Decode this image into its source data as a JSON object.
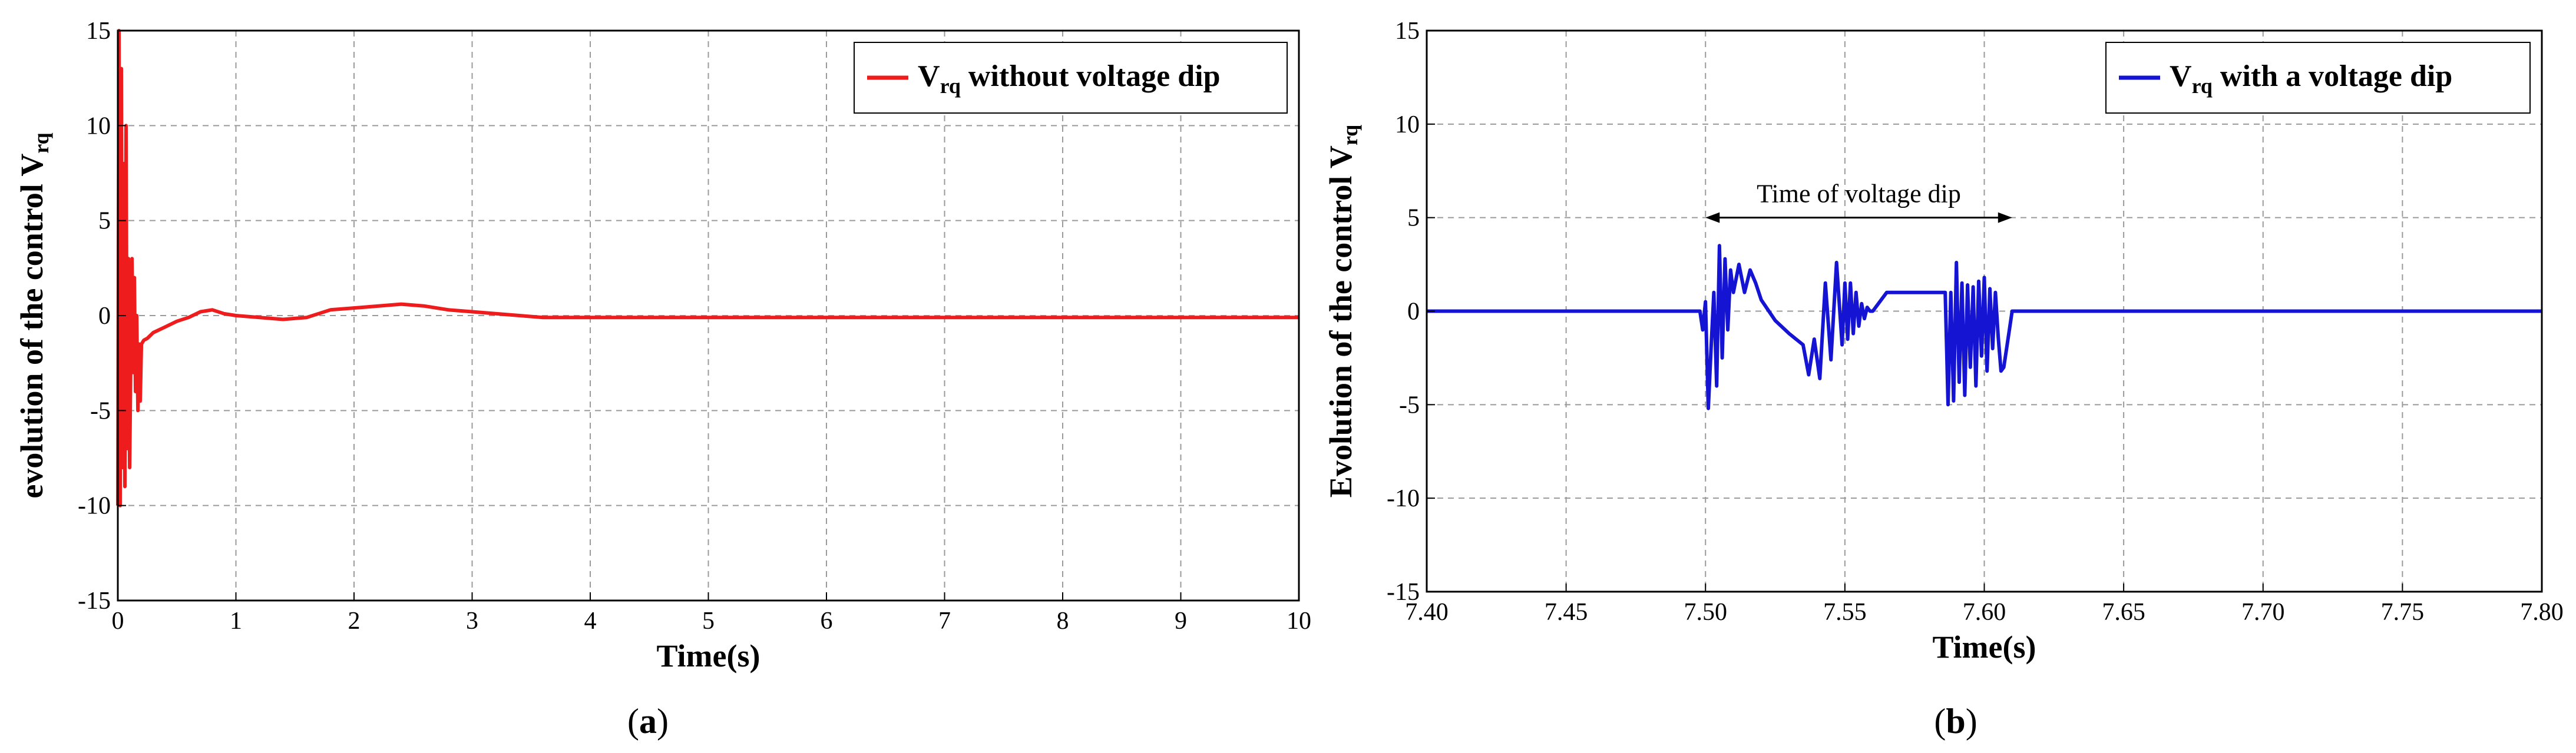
{
  "chart_data": [
    {
      "type": "line",
      "panel_label": "a",
      "xlabel": "Time(s)",
      "ylabel": "evolution of the control V",
      "ylabel_subscript": "rq",
      "xlim": [
        0,
        10
      ],
      "ylim": [
        -15,
        15
      ],
      "xticks": [
        0,
        1,
        2,
        3,
        4,
        5,
        6,
        7,
        8,
        9,
        10
      ],
      "xtick_labels": [
        "0",
        "1",
        "2",
        "3",
        "4",
        "5",
        "6",
        "7",
        "8",
        "9",
        "10"
      ],
      "yticks": [
        -15,
        -10,
        -5,
        0,
        5,
        10,
        15
      ],
      "ytick_labels": [
        "-15",
        "-10",
        "-5",
        "0",
        "5",
        "10",
        "15"
      ],
      "grid": true,
      "legend_position": "top-right",
      "legend_label": "V",
      "legend_subscript": "rq",
      "legend_suffix": " without voltage dip",
      "series": [
        {
          "color": "#ee1c1c",
          "x": [
            0,
            0.01,
            0.02,
            0.03,
            0.04,
            0.05,
            0.06,
            0.07,
            0.08,
            0.09,
            0.1,
            0.11,
            0.12,
            0.13,
            0.14,
            0.15,
            0.16,
            0.17,
            0.18,
            0.19,
            0.2,
            0.22,
            0.25,
            0.3,
            0.4,
            0.5,
            0.6,
            0.7,
            0.8,
            0.9,
            1.0,
            1.2,
            1.4,
            1.6,
            1.8,
            2.0,
            2.2,
            2.4,
            2.6,
            2.8,
            3.0,
            3.2,
            3.4,
            3.6,
            3.8,
            4.0,
            5.0,
            6.0,
            7.0,
            8.0,
            9.0,
            10.0
          ],
          "y": [
            -10,
            15,
            -10,
            13,
            -8,
            8,
            -9,
            10,
            -7,
            3,
            -8,
            -2,
            3,
            -3,
            2,
            -4,
            0,
            -5,
            -1.5,
            -4.5,
            -1.5,
            -1.3,
            -1.2,
            -0.9,
            -0.6,
            -0.3,
            -0.1,
            0.2,
            0.3,
            0.1,
            0.0,
            -0.1,
            -0.2,
            -0.1,
            0.3,
            0.4,
            0.5,
            0.6,
            0.5,
            0.3,
            0.2,
            0.1,
            0.0,
            -0.1,
            -0.1,
            -0.1,
            -0.1,
            -0.1,
            -0.1,
            -0.1,
            -0.1,
            -0.1
          ]
        }
      ]
    },
    {
      "type": "line",
      "panel_label": "b",
      "xlabel": "Time(s)",
      "ylabel": "Evolution of the control V",
      "ylabel_subscript": "rq",
      "xlim": [
        7.4,
        7.8
      ],
      "ylim": [
        -15,
        15
      ],
      "xticks": [
        7.4,
        7.45,
        7.5,
        7.55,
        7.6,
        7.65,
        7.7,
        7.75,
        7.8
      ],
      "xtick_labels": [
        "7.40",
        "7.45",
        "7.50",
        "7.55",
        "7.60",
        "7.65",
        "7.70",
        "7.75",
        "7.80"
      ],
      "yticks": [
        -15,
        -10,
        -5,
        0,
        5,
        10,
        15
      ],
      "ytick_labels": [
        "-15",
        "-10",
        "-5",
        "0",
        "5",
        "10",
        "15"
      ],
      "grid": true,
      "legend_position": "top-right",
      "legend_label": "V",
      "legend_subscript": "rq",
      "legend_suffix": " with a voltage dip",
      "annotation": {
        "text": "Time of voltage dip",
        "x_start": 7.5,
        "x_end": 7.61,
        "y": 5
      },
      "series": [
        {
          "color": "#1414d2",
          "x": [
            7.4,
            7.498,
            7.499,
            7.5,
            7.501,
            7.502,
            7.503,
            7.504,
            7.505,
            7.506,
            7.507,
            7.508,
            7.509,
            7.51,
            7.512,
            7.514,
            7.516,
            7.518,
            7.52,
            7.525,
            7.53,
            7.535,
            7.537,
            7.539,
            7.541,
            7.543,
            7.545,
            7.547,
            7.549,
            7.55,
            7.551,
            7.552,
            7.553,
            7.554,
            7.555,
            7.556,
            7.557,
            7.558,
            7.559,
            7.56,
            7.565,
            7.57,
            7.575,
            7.58,
            7.586,
            7.587,
            7.588,
            7.589,
            7.59,
            7.591,
            7.592,
            7.593,
            7.594,
            7.595,
            7.596,
            7.597,
            7.598,
            7.599,
            7.6,
            7.601,
            7.602,
            7.603,
            7.604,
            7.605,
            7.606,
            7.607,
            7.609,
            7.61,
            7.62,
            7.7,
            7.8
          ],
          "y": [
            0,
            0,
            -1,
            0.5,
            -5.2,
            -2,
            1,
            -4,
            3.5,
            -2.5,
            2.8,
            -1,
            2.2,
            1.0,
            2.5,
            1.0,
            2.2,
            1.5,
            0.6,
            -0.5,
            -1.2,
            -1.8,
            -3.4,
            -1.5,
            -3.6,
            1.5,
            -2.6,
            2.6,
            -1.8,
            1.5,
            -1.5,
            1.5,
            -1.2,
            1.0,
            -0.8,
            0.4,
            -0.4,
            0.2,
            0.0,
            0.0,
            1.0,
            1.0,
            1.0,
            1.0,
            1.0,
            -5.0,
            1.0,
            -4.8,
            2.6,
            -3.8,
            1.5,
            -4.5,
            1.4,
            -3.0,
            1.3,
            -4.0,
            1.6,
            -2.4,
            1.8,
            -3.2,
            1.2,
            -2.0,
            1.0,
            -1.4,
            -3.2,
            -3.0,
            -1.0,
            0.0,
            0.0,
            0.0,
            0.0
          ]
        }
      ]
    }
  ]
}
